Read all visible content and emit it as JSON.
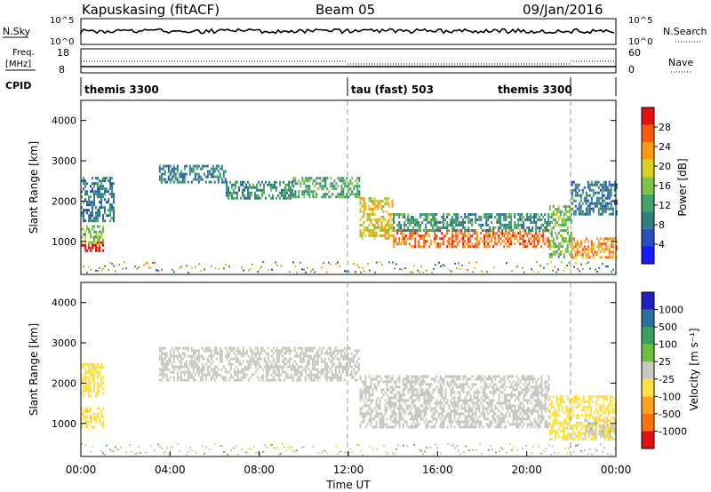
{
  "header": {
    "station": "Kapuskasing (fitACF)",
    "beam": "Beam 05",
    "date": "09/Jan/2016"
  },
  "top_panels": {
    "nsky_label": "N.Sky",
    "nsky_ticks": [
      "10^5",
      "10^0"
    ],
    "nsearch_ticks": [
      "10^5",
      "10^0"
    ],
    "nsearch_label": "N.Search",
    "freq_label_1": "Freq.",
    "freq_label_2": "[MHz]",
    "freq_ticks": [
      "18",
      "8"
    ],
    "nave_ticks": [
      "60",
      "0"
    ],
    "nave_label": "Nave",
    "cpid_label": "CPID",
    "cpid_segments": [
      {
        "label": "themis 3300",
        "start_hour": 0,
        "end_hour": 12
      },
      {
        "label": "tau (fast) 503",
        "start_hour": 12,
        "end_hour": 21.9
      },
      {
        "label": "themis 3300",
        "start_hour": 21.9,
        "end_hour": 24
      }
    ]
  },
  "x_axis": {
    "label": "Time UT",
    "ticks": [
      "00:00",
      "04:00",
      "08:00",
      "12:00",
      "16:00",
      "20:00",
      "00:00"
    ]
  },
  "power_panel": {
    "ylabel": "Slant Range [km]",
    "yticks": [
      "4000",
      "3000",
      "2000",
      "1000"
    ],
    "colorbar_label": "Power [dB]",
    "colorbar_ticks": [
      "28",
      "24",
      "20",
      "16",
      "12",
      "8",
      "4"
    ]
  },
  "velocity_panel": {
    "ylabel": "Slant Range [km]",
    "yticks": [
      "4000",
      "3000",
      "2000",
      "1000"
    ],
    "colorbar_label": "Velocity [m s⁻¹]",
    "colorbar_ticks": [
      "1000",
      "500",
      "100",
      "25",
      "-25",
      "-100",
      "-500",
      "-1000"
    ]
  },
  "chart_data": [
    {
      "type": "heatmap",
      "title": "Power",
      "x_unit": "hours UT",
      "xlim": [
        0,
        24
      ],
      "ylim": [
        180,
        4500
      ],
      "ylabel": "Slant Range [km]",
      "colorbar": {
        "label": "Power [dB]",
        "range": [
          0,
          30
        ]
      },
      "colors": [
        "#1a1aff",
        "#2a4fbf",
        "#2f7f7f",
        "#3fa36a",
        "#7fc24a",
        "#d8d020",
        "#ff9a10",
        "#ff5a10",
        "#e01010"
      ],
      "regions": [
        {
          "t_start": 0.0,
          "t_end": 1.0,
          "range_start": 750,
          "range_end": 1000,
          "power": 28
        },
        {
          "t_start": 0.0,
          "t_end": 1.0,
          "range_start": 1000,
          "range_end": 1400,
          "power": 15
        },
        {
          "t_start": 0.0,
          "t_end": 1.5,
          "range_start": 1500,
          "range_end": 2600,
          "power": 8
        },
        {
          "t_start": 3.5,
          "t_end": 6.5,
          "range_start": 2500,
          "range_end": 2900,
          "power": 9
        },
        {
          "t_start": 6.5,
          "t_end": 9.5,
          "range_start": 2100,
          "range_end": 2500,
          "power": 10
        },
        {
          "t_start": 9.5,
          "t_end": 12.5,
          "range_start": 2100,
          "range_end": 2600,
          "power": 12
        },
        {
          "t_start": 12.5,
          "t_end": 14.0,
          "range_start": 1100,
          "range_end": 2100,
          "power": 18
        },
        {
          "t_start": 14.0,
          "t_end": 21.0,
          "range_start": 900,
          "range_end": 1300,
          "power": 24
        },
        {
          "t_start": 14.0,
          "t_end": 21.0,
          "range_start": 1300,
          "range_end": 1700,
          "power": 10
        },
        {
          "t_start": 21.0,
          "t_end": 22.0,
          "range_start": 600,
          "range_end": 1900,
          "power": 14
        },
        {
          "t_start": 22.0,
          "t_end": 24.0,
          "range_start": 600,
          "range_end": 1100,
          "power": 22
        },
        {
          "t_start": 22.0,
          "t_end": 24.0,
          "range_start": 1700,
          "range_end": 2500,
          "power": 8
        }
      ]
    },
    {
      "type": "heatmap",
      "title": "Velocity",
      "x_unit": "hours UT",
      "xlim": [
        0,
        24
      ],
      "ylim": [
        180,
        4500
      ],
      "ylabel": "Slant Range [km]",
      "colorbar": {
        "label": "Velocity [m s⁻¹]",
        "range": [
          -1000,
          1000
        ]
      },
      "colors": [
        "#2020c0",
        "#2f6fa0",
        "#3aa060",
        "#70c040",
        "#c8c8c0",
        "#ffe040",
        "#ffa020",
        "#ff7010",
        "#e01010"
      ],
      "regions": [
        {
          "t_start": 0.0,
          "t_end": 1.0,
          "range_start": 900,
          "range_end": 1400,
          "velocity": -300
        },
        {
          "t_start": 0.0,
          "t_end": 1.0,
          "range_start": 1700,
          "range_end": 2500,
          "velocity": -150
        },
        {
          "t_start": 3.5,
          "t_end": 12.5,
          "range_start": 2100,
          "range_end": 2900,
          "velocity": 0
        },
        {
          "t_start": 12.5,
          "t_end": 21.0,
          "range_start": 900,
          "range_end": 2200,
          "velocity": 0
        },
        {
          "t_start": 21.0,
          "t_end": 24.0,
          "range_start": 600,
          "range_end": 1700,
          "velocity": -200
        },
        {
          "t_start": 22.5,
          "t_end": 24.0,
          "range_start": 700,
          "range_end": 1100,
          "velocity": 80
        }
      ]
    }
  ]
}
